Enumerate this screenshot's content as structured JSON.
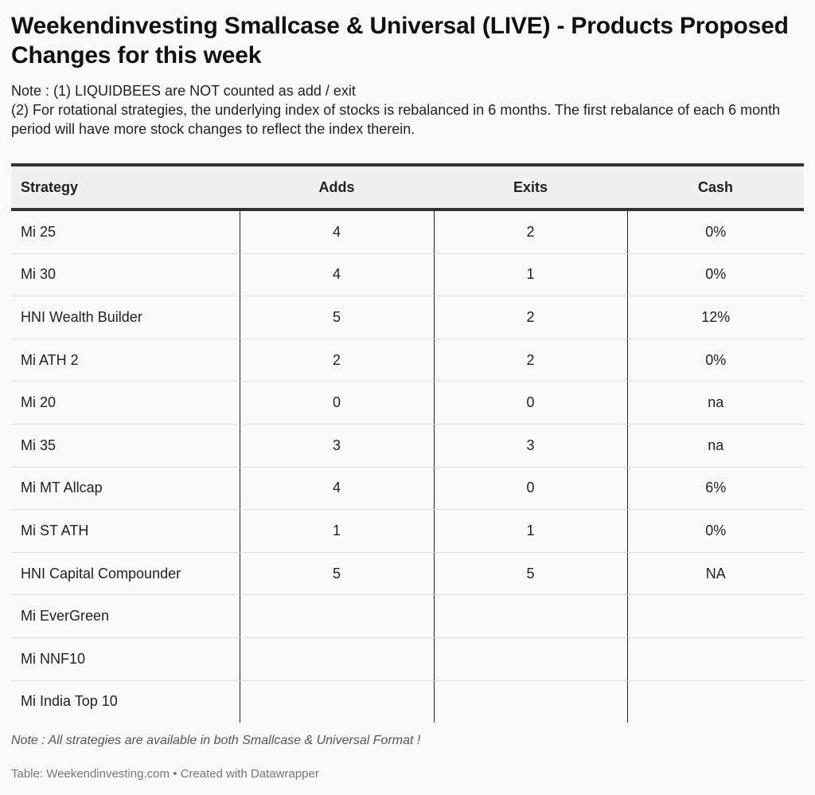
{
  "title": "Weekendinvesting Smallcase & Universal (LIVE) - Products Proposed Changes for this week",
  "notes": [
    "Note : (1) LIQUIDBEES are NOT counted as add / exit",
    "(2) For rotational strategies, the underlying index of stocks is rebalanced in 6 months. The first rebalance of each 6 month period will have more stock changes to reflect the index therein."
  ],
  "chart_data": {
    "type": "table",
    "columns": [
      "Strategy",
      "Adds",
      "Exits",
      "Cash"
    ],
    "rows": [
      [
        "Mi 25",
        "4",
        "2",
        "0%"
      ],
      [
        "Mi 30",
        "4",
        "1",
        "0%"
      ],
      [
        "HNI Wealth Builder",
        "5",
        "2",
        "12%"
      ],
      [
        "Mi ATH 2",
        "2",
        "2",
        "0%"
      ],
      [
        "Mi 20",
        "0",
        "0",
        "na"
      ],
      [
        "Mi 35",
        "3",
        "3",
        "na"
      ],
      [
        "Mi MT Allcap",
        "4",
        "0",
        "6%"
      ],
      [
        "Mi ST ATH",
        "1",
        "1",
        "0%"
      ],
      [
        "HNI Capital Compounder",
        "5",
        "5",
        "NA"
      ],
      [
        "Mi EverGreen",
        "",
        "",
        ""
      ],
      [
        "Mi NNF10",
        "",
        "",
        ""
      ],
      [
        "Mi India Top 10",
        "",
        "",
        ""
      ]
    ]
  },
  "footnote": "Note : All strategies are available in both Smallcase & Universal Format !",
  "source": "Table: Weekendinvesting.com • Created with Datawrapper"
}
